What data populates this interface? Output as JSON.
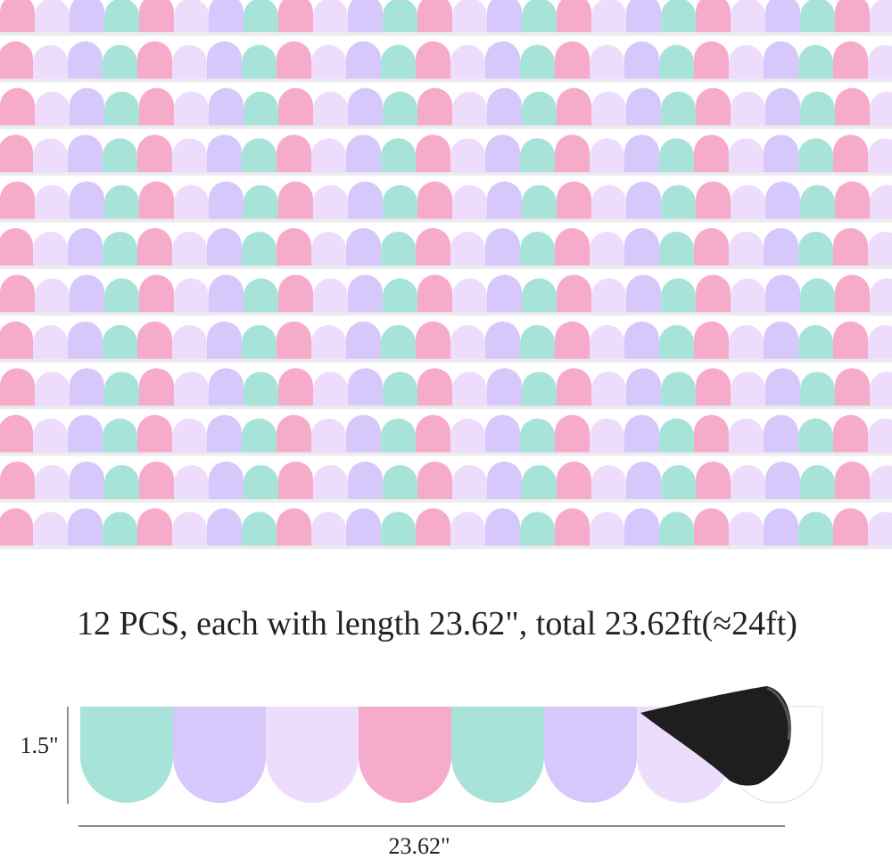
{
  "caption": "12 PCS, each with length 23.62\", total 23.62ft(≈24ft)",
  "height_label": "1.5\"",
  "length_label": "23.62\""
}
